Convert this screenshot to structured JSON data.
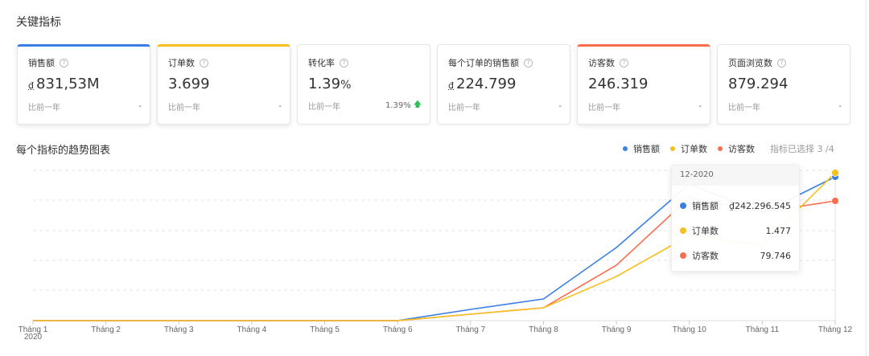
{
  "section_title": "关键指标",
  "cards": [
    {
      "label": "销售额",
      "currency": "₫",
      "value": "831,53M",
      "unit": "",
      "footer_label": "比前一年",
      "footer_value": "-",
      "selected": true,
      "accent": "#3a7fe6"
    },
    {
      "label": "订单数",
      "currency": "",
      "value": "3.699",
      "unit": "",
      "footer_label": "比前一年",
      "footer_value": "-",
      "selected": true,
      "accent": "#f6c022"
    },
    {
      "label": "转化率",
      "currency": "",
      "value": "1.39",
      "unit": "%",
      "footer_label": "比前一年",
      "footer_value": "1.39%",
      "footer_trend": "up",
      "selected": false,
      "accent": ""
    },
    {
      "label": "每个订单的销售额",
      "currency": "₫",
      "value": "224.799",
      "unit": "",
      "footer_label": "比前一年",
      "footer_value": "-",
      "selected": false,
      "accent": ""
    },
    {
      "label": "访客数",
      "currency": "",
      "value": "246.319",
      "unit": "",
      "footer_label": "比前一年",
      "footer_value": "-",
      "selected": true,
      "accent": "#fa6e4f"
    },
    {
      "label": "页面浏览数",
      "currency": "",
      "value": "879.294",
      "unit": "",
      "footer_label": "比前一年",
      "footer_value": "-",
      "selected": false,
      "accent": ""
    }
  ],
  "help_icon_glyph": "?",
  "trend_up_glyph": "🡅",
  "chart_title": "每个指标的趋势图表",
  "legend": {
    "items": [
      {
        "label": "销售额",
        "color": "#3a7fe6"
      },
      {
        "label": "订单数",
        "color": "#f6c022"
      },
      {
        "label": "访客数",
        "color": "#fa6e4f"
      }
    ],
    "selected_count": "指标已选择 3 /4"
  },
  "tooltip": {
    "title": "12-2020",
    "rows": [
      {
        "name": "销售额",
        "value": "₫242.296.545",
        "color": "#3a7fe6"
      },
      {
        "name": "订单数",
        "value": "1.477",
        "color": "#f6c022"
      },
      {
        "name": "访客数",
        "value": "79.746",
        "color": "#fa6e4f"
      }
    ]
  },
  "chart_data": {
    "type": "line",
    "title": "每个指标的趋势图表",
    "xlabel": "",
    "ylabel": "",
    "year_label": "2020",
    "categories": [
      "Tháng 1",
      "Tháng 2",
      "Tháng 3",
      "Tháng 4",
      "Tháng 5",
      "Tháng 6",
      "Tháng 7",
      "Tháng 8",
      "Tháng 9",
      "Tháng 10",
      "Tháng 11",
      "Tháng 12"
    ],
    "grid": true,
    "legend_position": "top-right",
    "note": "Each series drawn on its own hidden y-scale; December values exact from tooltip, others estimated from pixel heights.",
    "series": [
      {
        "name": "销售额",
        "color": "#3a7fe6",
        "values": [
          0,
          0,
          0,
          0,
          0,
          0,
          19000000,
          37000000,
          123000000,
          230000000,
          180230000,
          242296545
        ]
      },
      {
        "name": "订单数",
        "color": "#f6c022",
        "values": [
          0,
          0,
          0,
          0,
          0,
          0,
          64,
          127,
          443,
          840,
          750,
          1477
        ]
      },
      {
        "name": "访客数",
        "color": "#fa6e4f",
        "values": [
          0,
          0,
          0,
          0,
          0,
          0,
          4300,
          8400,
          36900,
          81900,
          72200,
          79746
        ]
      }
    ],
    "pixel_y": {
      "销售额": [
        399,
        399,
        399,
        399,
        399,
        399,
        385,
        372,
        308,
        229,
        265,
        220
      ],
      "订单数": [
        399,
        399,
        399,
        399,
        399,
        399,
        391,
        383,
        344,
        293,
        305,
        215
      ],
      "访客数": [
        399,
        399,
        399,
        399,
        399,
        399,
        391,
        383,
        330,
        246,
        264,
        250
      ]
    },
    "tooltip_month": "12-2020"
  }
}
